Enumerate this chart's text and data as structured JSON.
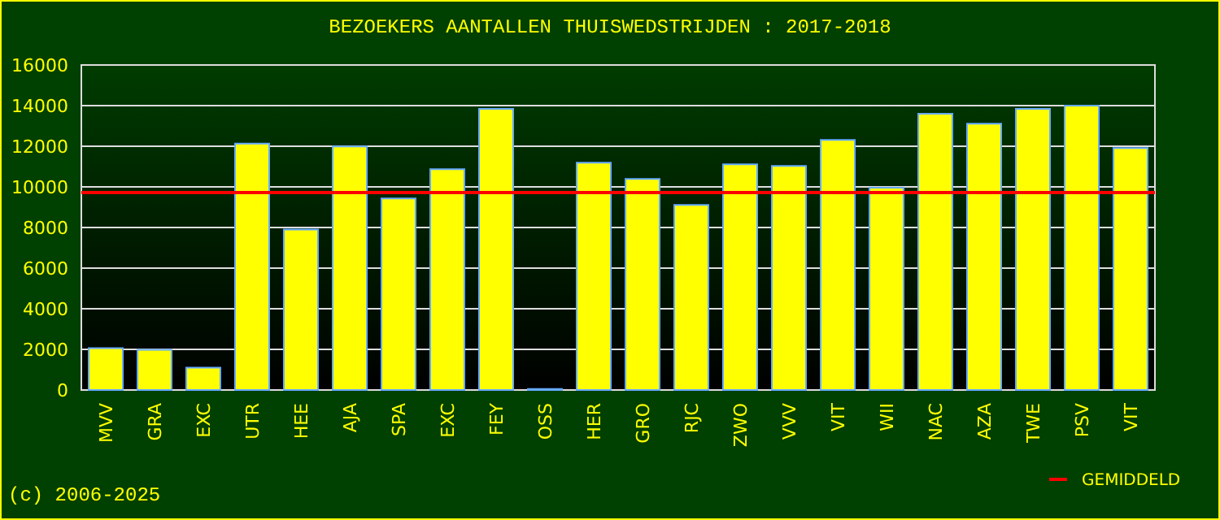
{
  "chart_data": {
    "type": "bar",
    "title": "BEZOEKERS AANTALLEN THUISWEDSTRIJDEN : 2017-2018",
    "categories": [
      "MVV",
      "GRA",
      "EXC",
      "UTR",
      "HEE",
      "AJA",
      "SPA",
      "EXC",
      "FEY",
      "OSS",
      "HER",
      "GRO",
      "RJC",
      "ZWO",
      "VVV",
      "VIT",
      "WII",
      "NAC",
      "AZA",
      "TWE",
      "PSV",
      "VIT"
    ],
    "values": [
      2060,
      1980,
      1100,
      12130,
      7900,
      11990,
      9430,
      10870,
      13840,
      50,
      11190,
      10390,
      9110,
      11110,
      11030,
      12310,
      9960,
      13600,
      13110,
      13840,
      14000,
      11910
    ],
    "color": "#ffff00",
    "ylim": [
      0,
      16000
    ],
    "yticks": [
      0,
      2000,
      4000,
      6000,
      8000,
      10000,
      12000,
      14000,
      16000
    ],
    "grid": "y",
    "ref_lines": [
      {
        "axis": "y",
        "value": 9720,
        "label": "GEMIDDELD",
        "color": "#ff0000"
      }
    ],
    "legend": "bottom right",
    "annotations": [
      "(c) 2006-2025"
    ]
  }
}
